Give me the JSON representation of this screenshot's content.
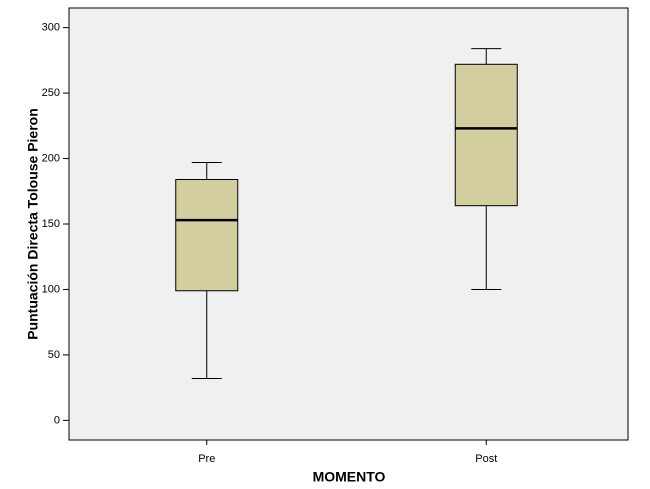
{
  "chart_data": {
    "type": "box",
    "x_label": "MOMENTO",
    "y_label": "Puntuación Directa Tolouse Pieron",
    "categories": [
      "Pre",
      "Post"
    ],
    "boxes": [
      {
        "min": 32,
        "q1": 99,
        "median": 153,
        "q3": 184,
        "max": 197
      },
      {
        "min": 100,
        "q1": 164,
        "median": 223,
        "q3": 272,
        "max": 284
      }
    ],
    "color": "#d3cea0",
    "ylim": [
      -15,
      315
    ],
    "yticks": [
      0,
      50,
      100,
      150,
      200,
      250,
      300
    ]
  }
}
